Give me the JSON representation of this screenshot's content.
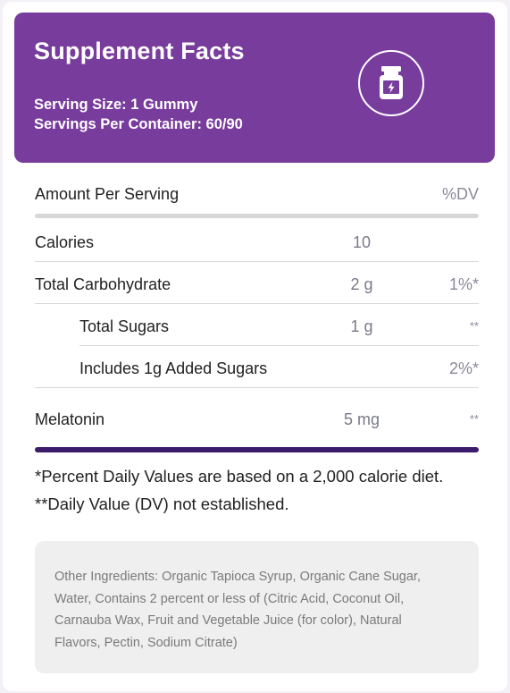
{
  "header": {
    "title": "Supplement Facts",
    "serving_size": "Serving Size: 1 Gummy",
    "servings_per_container": "Servings Per Container: 60/90",
    "icon": "supplement-bottle-icon",
    "color": "#783c9c"
  },
  "table": {
    "header_label": "Amount Per Serving",
    "header_dv": "%DV",
    "rows": [
      {
        "label": "Calories",
        "amount": "10",
        "dv": ""
      },
      {
        "label": "Total Carbohydrate",
        "amount": "2 g",
        "dv": "1%*"
      },
      {
        "label": "Total Sugars",
        "amount": "1 g",
        "dv": "**"
      },
      {
        "label": "Includes 1g Added Sugars",
        "amount": "",
        "dv": "2%*"
      },
      {
        "label": "Melatonin",
        "amount": "5 mg",
        "dv": "**"
      }
    ]
  },
  "footnotes": {
    "percent_dv": "*Percent Daily Values are based on a 2,000 calorie diet.",
    "dv_not_established": "**Daily Value (DV) not established."
  },
  "ingredients": "Other Ingredients: Organic Tapioca Syrup, Organic Cane Sugar, Water, Contains 2 percent or less of (Citric Acid, Coconut Oil, Carnauba Wax, Fruit and Vegetable Juice (for color), Natural Flavors, Pectin, Sodium Citrate)",
  "colors": {
    "accent_dark": "#3c1b6b"
  }
}
